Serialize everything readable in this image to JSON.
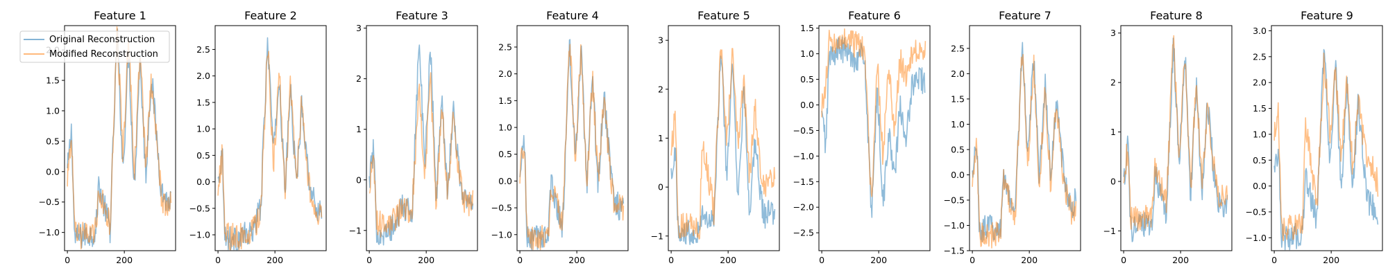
{
  "chart_data": {
    "type": "line",
    "layout": "1 row x 9 columns of subplots",
    "legend": {
      "placement": "upper-left of first subplot",
      "entries": [
        {
          "name": "Original Reconstruction",
          "color": "#1f77b4"
        },
        {
          "name": "Modified Reconstruction",
          "color": "#ff7f0e"
        }
      ]
    },
    "xlim": [
      -10,
      380
    ],
    "xticks": [
      0,
      200
    ],
    "x_extent": [
      0,
      365
    ],
    "segments": [
      0,
      15,
      25,
      60,
      100,
      110,
      150,
      175,
      195,
      215,
      235,
      255,
      275,
      295,
      315,
      330,
      350,
      365
    ],
    "subplots": [
      {
        "title": "Feature 1",
        "ylim": [
          -1.3,
          2.4
        ],
        "yticks": [
          -1.0,
          -0.5,
          0.0,
          0.5,
          1.0,
          1.5,
          2.0
        ],
        "original": [
          0.0,
          0.7,
          -1.1,
          -1.05,
          -1.0,
          -0.2,
          -0.95,
          2.3,
          0.0,
          2.0,
          -0.3,
          1.9,
          -0.1,
          1.6,
          0.5,
          -0.3,
          -0.5,
          -0.5
        ],
        "modified": [
          -0.1,
          0.6,
          -1.05,
          -1.05,
          -0.95,
          -0.3,
          -0.9,
          2.35,
          0.2,
          2.3,
          -0.1,
          2.0,
          0.1,
          1.5,
          0.4,
          -0.4,
          -0.6,
          -0.5
        ]
      },
      {
        "title": "Feature 2",
        "ylim": [
          -1.3,
          2.95
        ],
        "yticks": [
          -1.0,
          -0.5,
          0.0,
          0.5,
          1.0,
          1.5,
          2.0,
          2.5
        ],
        "original": [
          0.0,
          0.6,
          -1.05,
          -1.1,
          -1.0,
          -1.05,
          -0.5,
          2.7,
          0.5,
          2.0,
          -0.2,
          1.8,
          -0.1,
          1.5,
          0.3,
          -0.3,
          -0.5,
          -0.5
        ],
        "modified": [
          -0.1,
          0.5,
          -1.0,
          -1.05,
          -1.0,
          -1.05,
          -0.6,
          2.6,
          0.3,
          2.1,
          -0.3,
          1.9,
          0.0,
          1.6,
          0.2,
          -0.4,
          -0.6,
          -0.5
        ]
      },
      {
        "title": "Feature 3",
        "ylim": [
          -1.4,
          3.05
        ],
        "yticks": [
          -1,
          0,
          1,
          2,
          3
        ],
        "original": [
          0.0,
          0.6,
          -1.0,
          -1.1,
          -0.8,
          -0.5,
          -0.7,
          2.8,
          0.2,
          2.7,
          -0.4,
          1.6,
          -0.2,
          1.4,
          0.2,
          -0.3,
          -0.5,
          -0.4
        ],
        "modified": [
          -0.1,
          0.5,
          -0.8,
          -1.0,
          -0.7,
          -0.6,
          -0.6,
          1.8,
          0.1,
          2.0,
          -0.5,
          1.5,
          -0.3,
          1.3,
          0.1,
          -0.4,
          -0.5,
          -0.4
        ]
      },
      {
        "title": "Feature 4",
        "ylim": [
          -1.3,
          2.9
        ],
        "yticks": [
          -1.0,
          -0.5,
          0.0,
          0.5,
          1.0,
          1.5,
          2.0,
          2.5
        ],
        "original": [
          0.0,
          0.9,
          -1.1,
          -1.05,
          -1.0,
          0.0,
          -0.9,
          2.6,
          0.3,
          2.5,
          -0.2,
          1.9,
          -0.1,
          1.6,
          0.4,
          -0.3,
          -0.5,
          -0.5
        ],
        "modified": [
          0.1,
          0.8,
          -1.05,
          -1.05,
          -1.0,
          -0.1,
          -0.8,
          2.7,
          0.4,
          2.5,
          -0.1,
          1.9,
          0.0,
          1.5,
          0.3,
          -0.4,
          -0.5,
          -0.5
        ],
        "xlabel_ticks_present": true
      },
      {
        "title": "Feature 5",
        "ylim": [
          -1.3,
          3.3
        ],
        "yticks": [
          -1,
          0,
          1,
          2,
          3
        ],
        "original": [
          0.3,
          0.8,
          -1.0,
          -0.9,
          -0.9,
          -0.5,
          -0.8,
          2.9,
          0.2,
          2.5,
          -0.4,
          2.0,
          -0.5,
          1.0,
          -0.3,
          -0.6,
          -0.5,
          -0.7
        ],
        "modified": [
          0.8,
          1.5,
          -0.8,
          -0.8,
          -0.8,
          1.0,
          -0.5,
          3.0,
          0.9,
          2.7,
          0.8,
          2.2,
          0.2,
          1.6,
          0.3,
          0.0,
          0.1,
          0.3
        ]
      },
      {
        "title": "Feature 6",
        "ylim": [
          -2.85,
          1.55
        ],
        "yticks": [
          -2.5,
          -2.0,
          -1.5,
          -1.0,
          -0.5,
          0.0,
          0.5,
          1.0,
          1.5
        ],
        "original": [
          -0.2,
          -0.8,
          0.9,
          1.1,
          1.0,
          0.9,
          1.0,
          -2.3,
          0.4,
          -2.0,
          -0.5,
          -1.5,
          0.0,
          -0.8,
          0.3,
          0.6,
          0.5,
          0.4
        ],
        "modified": [
          -0.1,
          0.5,
          1.2,
          1.3,
          1.2,
          1.2,
          1.1,
          -2.0,
          0.9,
          -1.0,
          0.8,
          -0.5,
          0.9,
          0.5,
          1.0,
          1.1,
          1.0,
          1.0
        ]
      },
      {
        "title": "Feature 7",
        "ylim": [
          -1.5,
          2.95
        ],
        "yticks": [
          -1.5,
          -1.0,
          -0.5,
          0.0,
          0.5,
          1.0,
          1.5,
          2.0,
          2.5
        ],
        "original": [
          0.0,
          0.7,
          -1.1,
          -1.05,
          -1.0,
          0.0,
          -0.8,
          2.6,
          0.3,
          2.4,
          -0.2,
          1.9,
          -0.1,
          1.5,
          0.3,
          -0.3,
          -0.6,
          -0.5
        ],
        "modified": [
          -0.1,
          0.6,
          -1.2,
          -1.2,
          -1.1,
          -0.1,
          -0.9,
          2.5,
          0.2,
          2.3,
          -0.3,
          1.7,
          -0.2,
          1.4,
          0.2,
          -0.4,
          -0.8,
          -0.6
        ]
      },
      {
        "title": "Feature 8",
        "ylim": [
          -1.4,
          3.15
        ],
        "yticks": [
          -1,
          0,
          1,
          2,
          3
        ],
        "original": [
          0.0,
          0.8,
          -1.0,
          -0.9,
          -0.9,
          0.2,
          -0.7,
          2.8,
          0.3,
          2.7,
          -0.3,
          2.0,
          -0.2,
          1.6,
          0.3,
          -0.4,
          -0.5,
          -0.4
        ],
        "modified": [
          0.1,
          0.7,
          -0.8,
          -0.7,
          -0.7,
          0.3,
          -0.5,
          2.9,
          0.5,
          2.6,
          -0.2,
          2.1,
          -0.1,
          1.5,
          0.4,
          -0.3,
          -0.3,
          -0.3
        ]
      },
      {
        "title": "Feature 9",
        "ylim": [
          -1.25,
          3.1
        ],
        "yticks": [
          -1.0,
          -0.5,
          0.0,
          0.5,
          1.0,
          1.5,
          2.0,
          2.5,
          3.0
        ],
        "original": [
          0.3,
          0.8,
          -1.0,
          -1.0,
          -0.9,
          0.2,
          -0.7,
          2.8,
          0.3,
          2.4,
          -0.2,
          2.0,
          -0.1,
          1.6,
          0.4,
          -0.3,
          -0.4,
          -0.5
        ],
        "modified": [
          1.0,
          1.4,
          -0.8,
          -0.8,
          -0.7,
          1.2,
          -0.4,
          2.5,
          1.0,
          2.2,
          0.6,
          2.0,
          0.4,
          1.6,
          0.8,
          0.4,
          0.3,
          0.0
        ]
      }
    ]
  }
}
